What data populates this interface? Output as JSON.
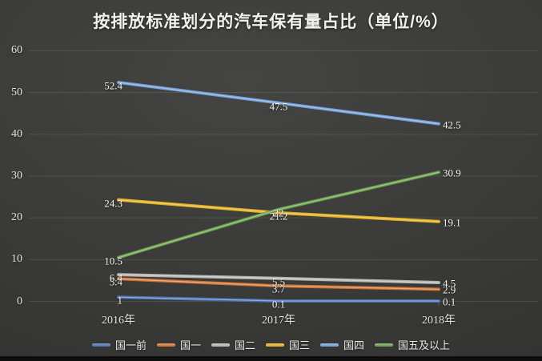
{
  "chart_data": {
    "type": "line",
    "title": "按排放标准划分的汽车保有量占比（单位/%）",
    "unit": "%",
    "categories": [
      "2016年",
      "2017年",
      "2018年"
    ],
    "series": [
      {
        "name": "国一前",
        "color": "#4a6fb0",
        "values": [
          1,
          0.1,
          0.1
        ]
      },
      {
        "name": "国一",
        "color": "#cf6e2e",
        "values": [
          5.4,
          3.7,
          2.9
        ]
      },
      {
        "name": "国二",
        "color": "#b4b2af",
        "values": [
          6.4,
          5.5,
          4.5
        ]
      },
      {
        "name": "国三",
        "color": "#e2ad1d",
        "values": [
          24.3,
          21.2,
          19.1
        ]
      },
      {
        "name": "国四",
        "color": "#6f9cd4",
        "values": [
          52.4,
          47.5,
          42.5
        ]
      },
      {
        "name": "国五及以上",
        "color": "#669d47",
        "values": [
          10.5,
          22,
          30.9
        ]
      }
    ],
    "ylim": [
      0,
      60
    ],
    "yticks": [
      0,
      10,
      20,
      30,
      40,
      50,
      60
    ],
    "grid": true,
    "legend_position": "bottom",
    "data_labels_shown": true,
    "background_color": "#3a3a38",
    "text_color": "#f2f1ef"
  }
}
